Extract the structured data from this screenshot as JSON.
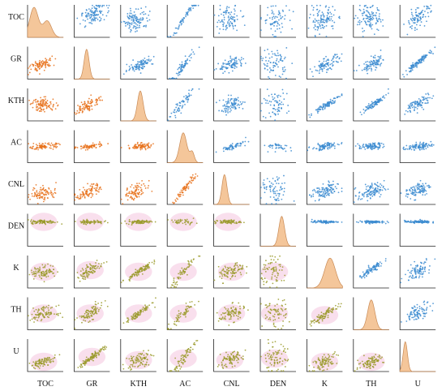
{
  "chart_data": {
    "type": "scatter-matrix",
    "variables": [
      "TOC",
      "GR",
      "KTH",
      "AC",
      "CNL",
      "DEN",
      "K",
      "TH",
      "U"
    ],
    "diagonal": "density",
    "cells": [
      [
        {
          "d": "kde",
          "peaks": [
            [
              0.18,
              0.12,
              1.0
            ],
            [
              0.55,
              0.12,
              0.55
            ]
          ]
        },
        {
          "s": "blue",
          "n": 110,
          "slope": 0.55,
          "spread": 0.15,
          "cx": 0.55,
          "cy": 0.7
        },
        {
          "s": "blue",
          "n": 110,
          "slope": 0.1,
          "spread": 0.18,
          "cx": 0.45,
          "cy": 0.55
        },
        {
          "s": "blue",
          "n": 60,
          "slope": 1.6,
          "spread": 0.05,
          "cx": 0.45,
          "cy": 0.55
        },
        {
          "s": "blue",
          "n": 90,
          "slope": 0.1,
          "spread": 0.2,
          "cx": 0.4,
          "cy": 0.55
        },
        {
          "s": "blue",
          "n": 70,
          "slope": 0.0,
          "spread": 0.25,
          "cx": 0.4,
          "cy": 0.55
        },
        {
          "s": "blue",
          "n": 110,
          "slope": 0.05,
          "spread": 0.2,
          "cx": 0.45,
          "cy": 0.55
        },
        {
          "s": "blue",
          "n": 110,
          "slope": 0.1,
          "spread": 0.2,
          "cx": 0.45,
          "cy": 0.55
        },
        {
          "s": "blue",
          "n": 90,
          "slope": 0.6,
          "spread": 0.14,
          "cx": 0.5,
          "cy": 0.6
        }
      ],
      [
        {
          "s": "orange",
          "n": 90,
          "slope": 0.4,
          "spread": 0.08,
          "cx": 0.4,
          "cy": 0.45
        },
        {
          "d": "kde",
          "peaks": [
            [
              0.35,
              0.07,
              1.0
            ]
          ]
        },
        {
          "s": "blue",
          "n": 90,
          "slope": 0.45,
          "spread": 0.08,
          "cx": 0.55,
          "cy": 0.45
        },
        {
          "s": "blue",
          "n": 70,
          "slope": 1.5,
          "spread": 0.08,
          "cx": 0.45,
          "cy": 0.4
        },
        {
          "s": "blue",
          "n": 90,
          "slope": 0.35,
          "spread": 0.1,
          "cx": 0.5,
          "cy": 0.45
        },
        {
          "s": "blue",
          "n": 80,
          "slope": 0.0,
          "spread": 0.22,
          "cx": 0.4,
          "cy": 0.5
        },
        {
          "s": "blue",
          "n": 90,
          "slope": 0.45,
          "spread": 0.1,
          "cx": 0.55,
          "cy": 0.45
        },
        {
          "s": "blue",
          "n": 90,
          "slope": 0.5,
          "spread": 0.1,
          "cx": 0.55,
          "cy": 0.45
        },
        {
          "s": "blue",
          "n": 110,
          "slope": 0.9,
          "spread": 0.05,
          "cx": 0.5,
          "cy": 0.5
        }
      ],
      [
        {
          "s": "orange",
          "n": 100,
          "slope": 0.05,
          "spread": 0.1,
          "cx": 0.45,
          "cy": 0.5
        },
        {
          "s": "orange",
          "n": 90,
          "slope": 0.5,
          "spread": 0.1,
          "cx": 0.4,
          "cy": 0.5
        },
        {
          "d": "kde",
          "peaks": [
            [
              0.55,
              0.08,
              1.0
            ]
          ]
        },
        {
          "s": "blue",
          "n": 60,
          "slope": 1.2,
          "spread": 0.08,
          "cx": 0.45,
          "cy": 0.55
        },
        {
          "s": "blue",
          "n": 90,
          "slope": 0.2,
          "spread": 0.12,
          "cx": 0.5,
          "cy": 0.5
        },
        {
          "s": "blue",
          "n": 70,
          "slope": 0.0,
          "spread": 0.2,
          "cx": 0.4,
          "cy": 0.5
        },
        {
          "s": "blue",
          "n": 90,
          "slope": 0.7,
          "spread": 0.05,
          "cx": 0.55,
          "cy": 0.5
        },
        {
          "s": "blue",
          "n": 90,
          "slope": 0.75,
          "spread": 0.05,
          "cx": 0.55,
          "cy": 0.5
        },
        {
          "s": "blue",
          "n": 90,
          "slope": 0.5,
          "spread": 0.1,
          "cx": 0.55,
          "cy": 0.55
        }
      ],
      [
        {
          "s": "orange",
          "n": 90,
          "slope": 0.1,
          "spread": 0.04,
          "cx": 0.45,
          "cy": 0.5
        },
        {
          "s": "orange",
          "n": 70,
          "slope": 0.1,
          "spread": 0.04,
          "cx": 0.45,
          "cy": 0.5
        },
        {
          "s": "orange",
          "n": 80,
          "slope": 0.1,
          "spread": 0.05,
          "cx": 0.55,
          "cy": 0.5
        },
        {
          "d": "kde",
          "peaks": [
            [
              0.45,
              0.1,
              1.0
            ],
            [
              0.7,
              0.06,
              0.35
            ]
          ]
        },
        {
          "s": "blue",
          "n": 60,
          "slope": 0.3,
          "spread": 0.04,
          "cx": 0.55,
          "cy": 0.5
        },
        {
          "s": "blue",
          "n": 40,
          "slope": 0.0,
          "spread": 0.06,
          "cx": 0.45,
          "cy": 0.5
        },
        {
          "s": "blue",
          "n": 90,
          "slope": 0.2,
          "spread": 0.05,
          "cx": 0.5,
          "cy": 0.5
        },
        {
          "s": "blue",
          "n": 90,
          "slope": 0.1,
          "spread": 0.05,
          "cx": 0.5,
          "cy": 0.5
        },
        {
          "s": "blue",
          "n": 90,
          "slope": 0.1,
          "spread": 0.05,
          "cx": 0.5,
          "cy": 0.5
        }
      ],
      [
        {
          "s": "orange",
          "n": 90,
          "slope": 0.1,
          "spread": 0.12,
          "cx": 0.45,
          "cy": 0.35
        },
        {
          "s": "orange",
          "n": 90,
          "slope": 0.4,
          "spread": 0.1,
          "cx": 0.4,
          "cy": 0.4
        },
        {
          "s": "orange",
          "n": 90,
          "slope": 0.5,
          "spread": 0.12,
          "cx": 0.45,
          "cy": 0.4
        },
        {
          "s": "orange",
          "n": 70,
          "slope": 1.3,
          "spread": 0.06,
          "cx": 0.5,
          "cy": 0.5
        },
        {
          "d": "kde",
          "peaks": [
            [
              0.3,
              0.07,
              1.0
            ]
          ]
        },
        {
          "s": "blue",
          "n": 70,
          "slope": 0.0,
          "spread": 0.22,
          "cx": 0.4,
          "cy": 0.4
        },
        {
          "s": "blue",
          "n": 110,
          "slope": 0.25,
          "spread": 0.12,
          "cx": 0.5,
          "cy": 0.4
        },
        {
          "s": "blue",
          "n": 110,
          "slope": 0.25,
          "spread": 0.12,
          "cx": 0.5,
          "cy": 0.4
        },
        {
          "s": "blue",
          "n": 100,
          "slope": 0.35,
          "spread": 0.12,
          "cx": 0.5,
          "cy": 0.45
        }
      ],
      [
        {
          "s": "olive",
          "n": 90,
          "slope": 0.0,
          "spread": 0.03,
          "cx": 0.45,
          "cy": 0.75
        },
        {
          "s": "olive",
          "n": 70,
          "slope": 0.0,
          "spread": 0.03,
          "cx": 0.45,
          "cy": 0.75
        },
        {
          "s": "olive",
          "n": 80,
          "slope": 0.0,
          "spread": 0.03,
          "cx": 0.5,
          "cy": 0.75
        },
        {
          "s": "olive",
          "n": 40,
          "slope": 0.0,
          "spread": 0.04,
          "cx": 0.45,
          "cy": 0.75
        },
        {
          "s": "olive",
          "n": 70,
          "slope": 0.0,
          "spread": 0.03,
          "cx": 0.4,
          "cy": 0.75
        },
        {
          "d": "kde",
          "peaks": [
            [
              0.6,
              0.08,
              1.0
            ]
          ]
        },
        {
          "s": "blue",
          "n": 90,
          "slope": 0.0,
          "spread": 0.02,
          "cx": 0.5,
          "cy": 0.75
        },
        {
          "s": "blue",
          "n": 90,
          "slope": 0.0,
          "spread": 0.02,
          "cx": 0.5,
          "cy": 0.75
        },
        {
          "s": "blue",
          "n": 90,
          "slope": 0.0,
          "spread": 0.02,
          "cx": 0.5,
          "cy": 0.75
        }
      ],
      [
        {
          "s": "olive",
          "n": 90,
          "slope": 0.1,
          "spread": 0.1,
          "cx": 0.45,
          "cy": 0.5
        },
        {
          "s": "olive",
          "n": 90,
          "slope": 0.6,
          "spread": 0.1,
          "cx": 0.45,
          "cy": 0.55
        },
        {
          "s": "olive",
          "n": 90,
          "slope": 0.7,
          "spread": 0.05,
          "cx": 0.5,
          "cy": 0.5
        },
        {
          "s": "olive",
          "n": 60,
          "slope": 1.4,
          "spread": 0.08,
          "cx": 0.45,
          "cy": 0.5
        },
        {
          "s": "olive",
          "n": 90,
          "slope": 0.3,
          "spread": 0.12,
          "cx": 0.5,
          "cy": 0.5
        },
        {
          "s": "olive",
          "n": 70,
          "slope": 0.0,
          "spread": 0.22,
          "cx": 0.4,
          "cy": 0.5
        },
        {
          "d": "kde",
          "peaks": [
            [
              0.65,
              0.15,
              1.0
            ]
          ]
        },
        {
          "s": "blue",
          "n": 90,
          "slope": 0.8,
          "spread": 0.06,
          "cx": 0.5,
          "cy": 0.55
        },
        {
          "s": "blue",
          "n": 90,
          "slope": 0.5,
          "spread": 0.12,
          "cx": 0.5,
          "cy": 0.55
        }
      ],
      [
        {
          "s": "olive",
          "n": 90,
          "slope": 0.1,
          "spread": 0.1,
          "cx": 0.45,
          "cy": 0.5
        },
        {
          "s": "olive",
          "n": 90,
          "slope": 0.6,
          "spread": 0.1,
          "cx": 0.45,
          "cy": 0.5
        },
        {
          "s": "olive",
          "n": 90,
          "slope": 0.75,
          "spread": 0.05,
          "cx": 0.5,
          "cy": 0.5
        },
        {
          "s": "olive",
          "n": 60,
          "slope": 1.2,
          "spread": 0.1,
          "cx": 0.45,
          "cy": 0.5
        },
        {
          "s": "olive",
          "n": 90,
          "slope": 0.3,
          "spread": 0.12,
          "cx": 0.5,
          "cy": 0.5
        },
        {
          "s": "olive",
          "n": 70,
          "slope": 0.0,
          "spread": 0.22,
          "cx": 0.4,
          "cy": 0.5
        },
        {
          "s": "olive",
          "n": 90,
          "slope": 0.7,
          "spread": 0.06,
          "cx": 0.5,
          "cy": 0.45
        },
        {
          "d": "kde",
          "peaks": [
            [
              0.5,
              0.1,
              1.0
            ]
          ]
        },
        {
          "s": "blue",
          "n": 90,
          "slope": 0.5,
          "spread": 0.12,
          "cx": 0.5,
          "cy": 0.55
        }
      ],
      [
        {
          "s": "olive",
          "n": 90,
          "slope": 0.3,
          "spread": 0.06,
          "cx": 0.45,
          "cy": 0.3
        },
        {
          "s": "olive",
          "n": 110,
          "slope": 0.85,
          "spread": 0.05,
          "cx": 0.5,
          "cy": 0.45
        },
        {
          "s": "olive",
          "n": 90,
          "slope": 0.4,
          "spread": 0.12,
          "cx": 0.5,
          "cy": 0.35
        },
        {
          "s": "olive",
          "n": 70,
          "slope": 1.3,
          "spread": 0.1,
          "cx": 0.45,
          "cy": 0.4
        },
        {
          "s": "olive",
          "n": 90,
          "slope": 0.4,
          "spread": 0.1,
          "cx": 0.45,
          "cy": 0.35
        },
        {
          "s": "olive",
          "n": 80,
          "slope": 0.0,
          "spread": 0.25,
          "cx": 0.4,
          "cy": 0.4
        },
        {
          "s": "olive",
          "n": 90,
          "slope": 0.45,
          "spread": 0.1,
          "cx": 0.5,
          "cy": 0.3
        },
        {
          "s": "olive",
          "n": 90,
          "slope": 0.45,
          "spread": 0.1,
          "cx": 0.5,
          "cy": 0.3
        },
        {
          "d": "kde",
          "peaks": [
            [
              0.15,
              0.06,
              1.0
            ]
          ]
        }
      ]
    ],
    "colors": {
      "blue": "#3b8bd0",
      "orange": "#e8721c",
      "olive": "#9a9a2a",
      "pink_halo": "#f2b8d8",
      "density_fill": "#f4c69a",
      "density_line": "#c98a55"
    }
  }
}
